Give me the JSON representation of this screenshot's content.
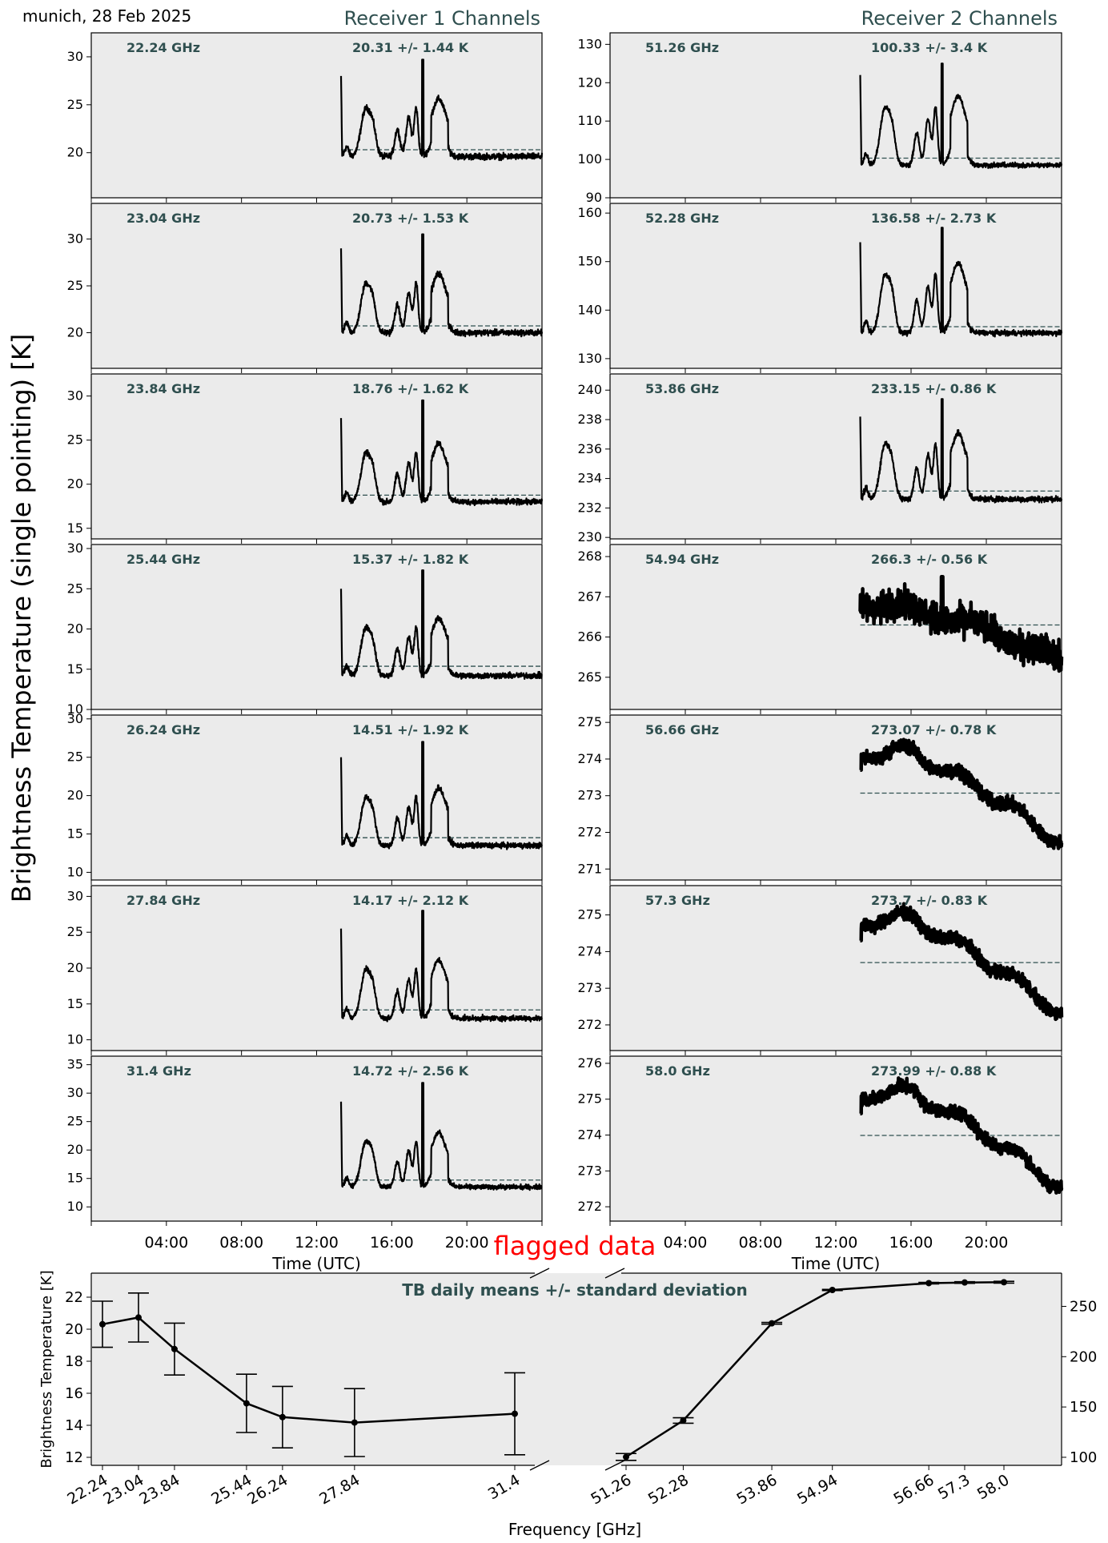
{
  "header": {
    "station_date": "munich, 28 Feb 2025",
    "receiver1_title": "Receiver 1 Channels",
    "receiver2_title": "Receiver 2 Channels",
    "ylabel": "Brightness Temperature (single pointing) [K]",
    "flagged_label": "flagged data"
  },
  "colors": {
    "panel_bg": "#ebebeb",
    "annotation": "#2f4f4f",
    "mean_line": "#2f4f4f",
    "data": "#000000",
    "flagged": "#ff0000"
  },
  "chart_data": [
    {
      "type": "line",
      "receiver": "Receiver 1",
      "xlabel": "Time (UTC)",
      "xticks": [
        "04:00",
        "08:00",
        "12:00",
        "16:00",
        "20:00"
      ],
      "xlim_hours": [
        0,
        24
      ],
      "data_start_hour": 13.3,
      "panels": [
        {
          "freq": "22.24 GHz",
          "stat": "20.31 +/- 1.44 K",
          "mean": 20.31,
          "ylim": [
            15.3,
            32.5
          ],
          "yticks": [
            20,
            25,
            30
          ],
          "base": 19.6,
          "peak": 29.7,
          "start": 28,
          "noise": 0.35,
          "trend": 0,
          "scale": 1
        },
        {
          "freq": "23.04 GHz",
          "stat": "20.73 +/- 1.53 K",
          "mean": 20.73,
          "ylim": [
            16.2,
            33.8
          ],
          "yticks": [
            20,
            25,
            30
          ],
          "base": 20.0,
          "peak": 30.5,
          "start": 29,
          "noise": 0.35,
          "trend": 0,
          "scale": 1.05
        },
        {
          "freq": "23.84 GHz",
          "stat": "18.76 +/- 1.62 K",
          "mean": 18.76,
          "ylim": [
            13.8,
            32.5
          ],
          "yticks": [
            15,
            20,
            25,
            30
          ],
          "base": 18.0,
          "peak": 29.5,
          "start": 27.5,
          "noise": 0.35,
          "trend": 0,
          "scale": 1.1
        },
        {
          "freq": "25.44 GHz",
          "stat": "15.37 +/- 1.82 K",
          "mean": 15.37,
          "ylim": [
            10,
            30.5
          ],
          "yticks": [
            10,
            15,
            20,
            25,
            30
          ],
          "base": 14.2,
          "peak": 27.3,
          "start": 25,
          "noise": 0.4,
          "trend": 0,
          "scale": 1.2
        },
        {
          "freq": "26.24 GHz",
          "stat": "14.51 +/- 1.92 K",
          "mean": 14.51,
          "ylim": [
            9,
            30.5
          ],
          "yticks": [
            10,
            15,
            20,
            25,
            30
          ],
          "base": 13.5,
          "peak": 27.0,
          "start": 25,
          "noise": 0.4,
          "trend": 0,
          "scale": 1.25
        },
        {
          "freq": "27.84 GHz",
          "stat": "14.17 +/- 2.12 K",
          "mean": 14.17,
          "ylim": [
            8.5,
            31.5
          ],
          "yticks": [
            10,
            15,
            20,
            25,
            30
          ],
          "base": 13.0,
          "peak": 28.0,
          "start": 25.5,
          "noise": 0.4,
          "trend": 0,
          "scale": 1.35
        },
        {
          "freq": "31.4 GHz",
          "stat": "14.72 +/- 2.56 K",
          "mean": 14.72,
          "ylim": [
            7.5,
            36.5
          ],
          "yticks": [
            10,
            15,
            20,
            25,
            30,
            35
          ],
          "base": 13.5,
          "peak": 31.8,
          "start": 28.5,
          "noise": 0.45,
          "trend": 0,
          "scale": 1.6
        }
      ]
    },
    {
      "type": "line",
      "receiver": "Receiver 2",
      "xlabel": "Time (UTC)",
      "xticks": [
        "04:00",
        "08:00",
        "12:00",
        "16:00",
        "20:00"
      ],
      "xlim_hours": [
        0,
        24
      ],
      "data_start_hour": 13.3,
      "panels": [
        {
          "freq": "51.26 GHz",
          "stat": "100.33 +/- 3.4 K",
          "mean": 100.33,
          "ylim": [
            90,
            133
          ],
          "yticks": [
            90,
            100,
            110,
            120,
            130
          ],
          "base": 98.5,
          "peak": 125,
          "start": 122,
          "noise": 0.7,
          "trend": 0,
          "scale": 3.0
        },
        {
          "freq": "52.28 GHz",
          "stat": "136.58 +/- 2.73 K",
          "mean": 136.58,
          "ylim": [
            128,
            162
          ],
          "yticks": [
            130,
            140,
            150,
            160
          ],
          "base": 135.3,
          "peak": 157,
          "start": 154,
          "noise": 0.6,
          "trend": 0,
          "scale": 2.4
        },
        {
          "freq": "53.86 GHz",
          "stat": "233.15 +/- 0.86 K",
          "mean": 233.15,
          "ylim": [
            229.9,
            241.1
          ],
          "yticks": [
            230,
            232,
            234,
            236,
            238,
            240
          ],
          "base": 232.6,
          "peak": 239.4,
          "start": 238.2,
          "noise": 0.22,
          "trend": 0,
          "scale": 0.75
        },
        {
          "freq": "54.94 GHz",
          "stat": "266.3 +/- 0.56 K",
          "mean": 266.3,
          "ylim": [
            264.2,
            268.3
          ],
          "yticks": [
            265,
            266,
            267,
            268
          ],
          "base": 0,
          "peak": 267.5,
          "start": 267.4,
          "noise": 0.18,
          "trend": 1,
          "t0": 266.85,
          "t1": 265.4,
          "scale": 0
        },
        {
          "freq": "56.66 GHz",
          "stat": "273.07 +/- 0.78 K",
          "mean": 273.07,
          "ylim": [
            270.7,
            275.2
          ],
          "yticks": [
            271,
            272,
            273,
            274,
            275
          ],
          "base": 0,
          "peak": 274.3,
          "start": 273.7,
          "noise": 0.1,
          "trend": 2,
          "t0": 274.0,
          "t1": 271.7,
          "scale": 0
        },
        {
          "freq": "57.3 GHz",
          "stat": "273.7 +/- 0.83 K",
          "mean": 273.7,
          "ylim": [
            271.3,
            275.8
          ],
          "yticks": [
            272,
            273,
            274,
            275
          ],
          "base": 0,
          "peak": 275.0,
          "start": 274.3,
          "noise": 0.1,
          "trend": 2,
          "t0": 274.7,
          "t1": 272.3,
          "scale": 0
        },
        {
          "freq": "58.0 GHz",
          "stat": "273.99 +/- 0.88 K",
          "mean": 273.99,
          "ylim": [
            271.6,
            276.2
          ],
          "yticks": [
            272,
            273,
            274,
            275,
            276
          ],
          "base": 0,
          "peak": 275.3,
          "start": 274.6,
          "noise": 0.1,
          "trend": 2,
          "t0": 275.0,
          "t1": 272.5,
          "scale": 0
        }
      ]
    },
    {
      "type": "line",
      "title": "TB daily means +/- standard deviation",
      "xlabel": "Frequency [GHz]",
      "ylabel_left": "Brightness Temperature [K]",
      "left_axis": {
        "ylim": [
          11.5,
          23.5
        ],
        "yticks": [
          12,
          14,
          16,
          18,
          20,
          22
        ],
        "x": [
          22.24,
          23.04,
          23.84,
          25.44,
          26.24,
          27.84,
          31.4
        ],
        "xtick_labels": [
          "22.24",
          "23.04",
          "23.84",
          "25.44",
          "26.24",
          "27.84",
          "31.4"
        ],
        "mean": [
          20.31,
          20.73,
          18.76,
          15.37,
          14.51,
          14.17,
          14.72
        ],
        "std": [
          1.44,
          1.53,
          1.62,
          1.82,
          1.92,
          2.12,
          2.56
        ]
      },
      "right_axis": {
        "ylim": [
          92,
          283
        ],
        "yticks": [
          100,
          150,
          200,
          250
        ],
        "x": [
          51.26,
          52.28,
          53.86,
          54.94,
          56.66,
          57.3,
          58.0
        ],
        "xtick_labels": [
          "51.26",
          "52.28",
          "53.86",
          "54.94",
          "56.66",
          "57.3",
          "58.0"
        ],
        "mean": [
          100.33,
          136.58,
          233.15,
          266.3,
          273.07,
          273.7,
          273.99
        ],
        "std": [
          3.4,
          2.73,
          0.86,
          0.56,
          0.78,
          0.83,
          0.88
        ]
      }
    }
  ]
}
